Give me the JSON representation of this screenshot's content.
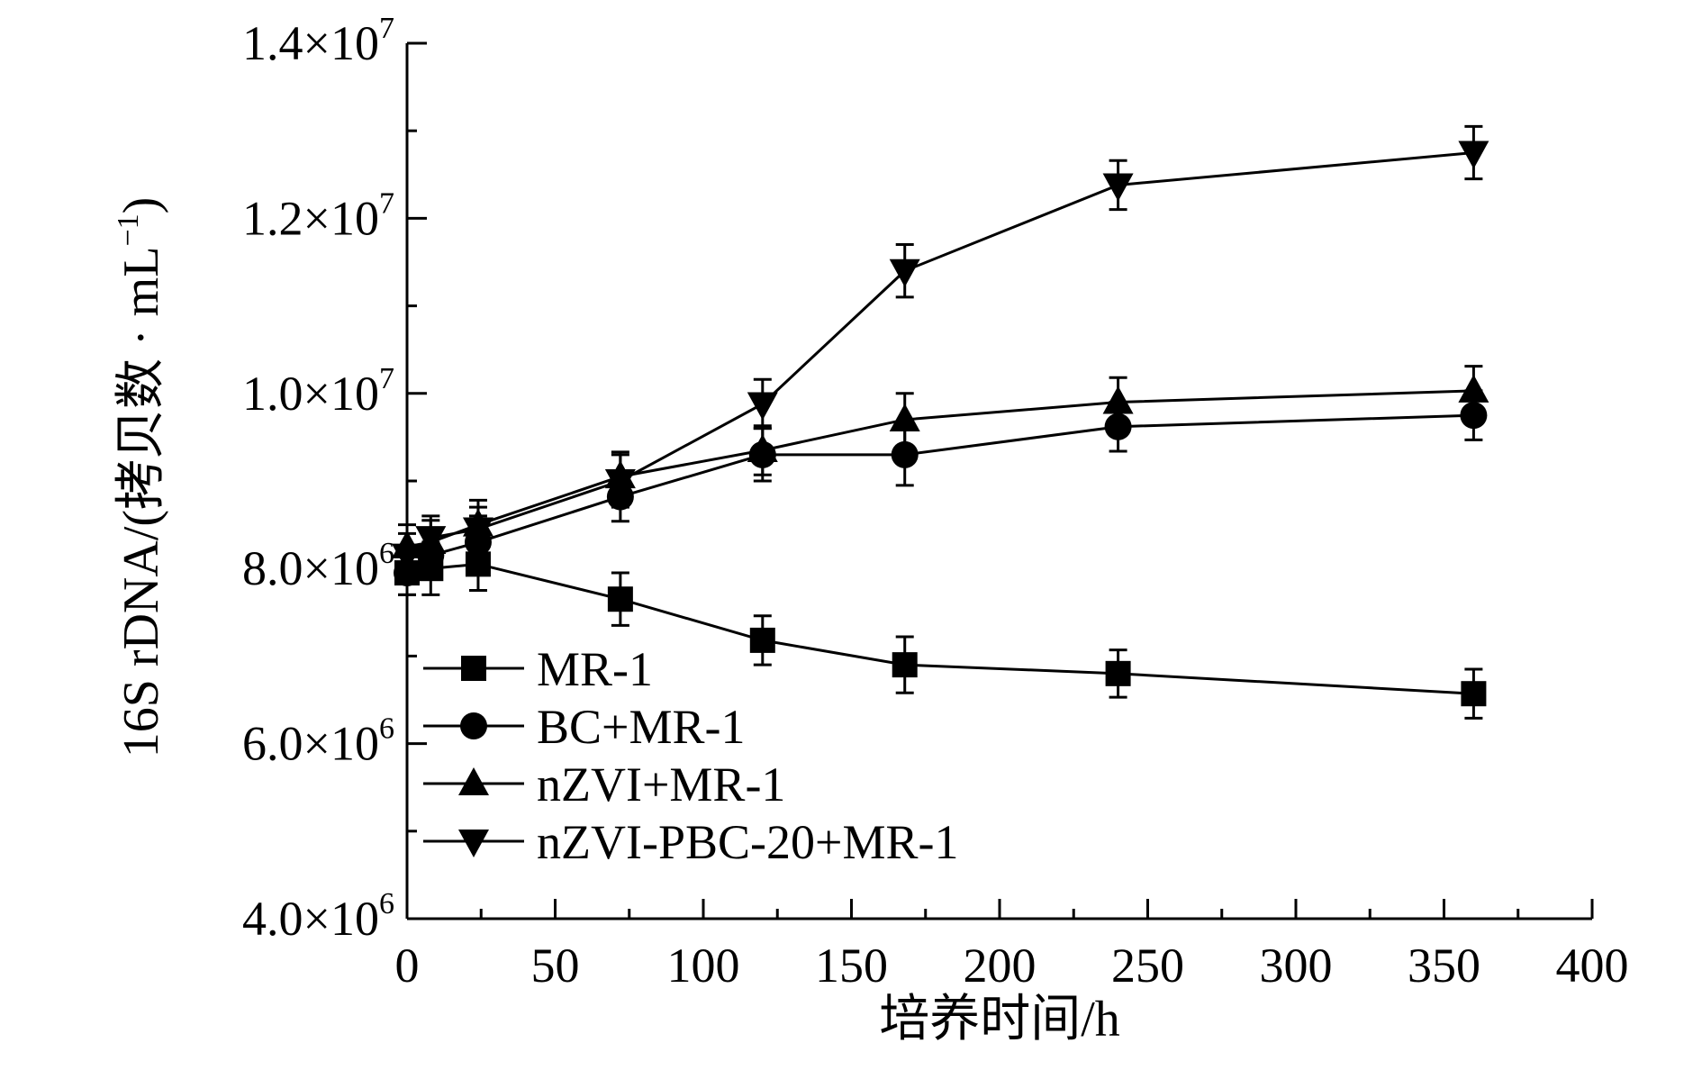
{
  "chart_data": {
    "type": "line",
    "title": "",
    "xlabel": "培养时间/h",
    "ylabel": "16S rDNA/(拷贝数 · mL",
    "ylabel_sup": "−1",
    "ylabel_close": ")",
    "xlim": [
      0,
      400
    ],
    "ylim": [
      4000000,
      14000000
    ],
    "x_ticks": [
      {
        "value": 0,
        "label": "0"
      },
      {
        "value": 50,
        "label": "50"
      },
      {
        "value": 100,
        "label": "100"
      },
      {
        "value": 150,
        "label": "150"
      },
      {
        "value": 200,
        "label": "200"
      },
      {
        "value": 250,
        "label": "250"
      },
      {
        "value": 300,
        "label": "300"
      },
      {
        "value": 350,
        "label": "350"
      },
      {
        "value": 400,
        "label": "400"
      }
    ],
    "y_ticks": [
      {
        "value": 4000000,
        "base": "4.0×10",
        "exp": "6"
      },
      {
        "value": 6000000,
        "base": "6.0×10",
        "exp": "6"
      },
      {
        "value": 8000000,
        "base": "8.0×10",
        "exp": "6"
      },
      {
        "value": 10000000,
        "base": "1.0×10",
        "exp": "7"
      },
      {
        "value": 12000000,
        "base": "1.2×10",
        "exp": "7"
      },
      {
        "value": 14000000,
        "base": "1.4×10",
        "exp": "7"
      }
    ],
    "x_minor_step": 25,
    "y_minor_step": 1000000,
    "grid": false,
    "legend_position": "bottom-left",
    "series": [
      {
        "name": "MR-1",
        "marker": "square",
        "x": [
          0,
          8,
          24,
          72,
          120,
          168,
          240,
          360
        ],
        "y": [
          7950000,
          8000000,
          8050000,
          7650000,
          7180000,
          6900000,
          6800000,
          6570000
        ],
        "err": [
          250000,
          300000,
          300000,
          300000,
          280000,
          320000,
          270000,
          280000
        ]
      },
      {
        "name": "BC+MR-1",
        "marker": "circle",
        "x": [
          0,
          8,
          24,
          72,
          120,
          168,
          240,
          360
        ],
        "y": [
          7950000,
          8150000,
          8300000,
          8820000,
          9300000,
          9300000,
          9620000,
          9750000
        ],
        "err": [
          250000,
          250000,
          300000,
          280000,
          300000,
          350000,
          280000,
          280000
        ]
      },
      {
        "name": "nZVI+MR-1",
        "marker": "triangle-up",
        "x": [
          0,
          8,
          24,
          72,
          120,
          168,
          240,
          360
        ],
        "y": [
          8250000,
          8300000,
          8500000,
          9050000,
          9350000,
          9700000,
          9900000,
          10030000
        ],
        "err": [
          250000,
          250000,
          280000,
          280000,
          280000,
          300000,
          280000,
          280000
        ]
      },
      {
        "name": "nZVI-PBC-20+MR-1",
        "marker": "triangle-down",
        "x": [
          0,
          8,
          24,
          72,
          120,
          168,
          240,
          360
        ],
        "y": [
          8150000,
          8350000,
          8450000,
          9000000,
          9880000,
          11400000,
          12380000,
          12750000
        ],
        "err": [
          250000,
          250000,
          250000,
          300000,
          280000,
          300000,
          280000,
          300000
        ]
      }
    ]
  }
}
